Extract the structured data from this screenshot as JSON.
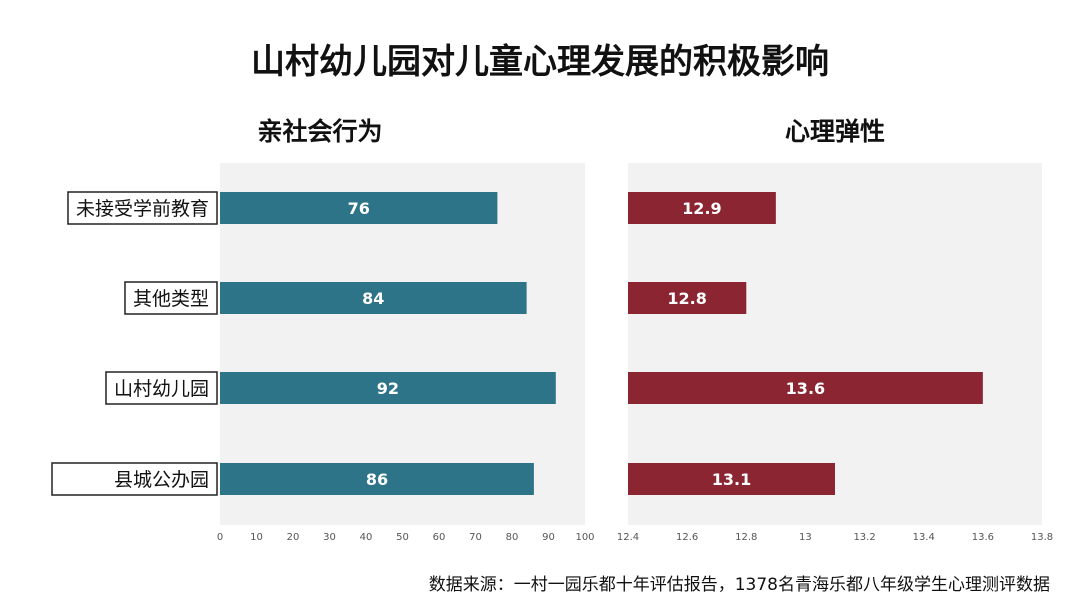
{
  "title": "山村幼儿园对儿童心理发展的积极影响",
  "source": "数据来源：一村一园乐都十年评估报告，1378名青海乐都八年级学生心理测评数据",
  "chart_data": [
    {
      "type": "bar",
      "orientation": "horizontal",
      "title": "亲社会行为",
      "categories": [
        "未接受学前教育",
        "其他类型",
        "山村幼儿园",
        "县城公办园"
      ],
      "values": [
        76,
        84,
        92,
        86
      ],
      "data_labels": [
        "76",
        "84",
        "92",
        "86"
      ],
      "xlim": [
        0,
        100
      ],
      "ticks": [
        "0",
        "10",
        "20",
        "30",
        "40",
        "50",
        "60",
        "70",
        "80",
        "90",
        "100"
      ],
      "color": "#2e7489",
      "background": "#f2f2f2",
      "grid": false
    },
    {
      "type": "bar",
      "orientation": "horizontal",
      "title": "心理弹性",
      "categories": [
        "未接受学前教育",
        "其他类型",
        "山村幼儿园",
        "县城公办园"
      ],
      "values": [
        12.9,
        12.8,
        13.6,
        13.1
      ],
      "data_labels": [
        "12.9",
        "12.8",
        "13.6",
        "13.1"
      ],
      "xlim": [
        12.4,
        13.8
      ],
      "ticks": [
        "12.4",
        "12.6",
        "12.8",
        "13",
        "13.2",
        "13.4",
        "13.6",
        "13.8"
      ],
      "color": "#8b2532",
      "background": "#f2f2f2",
      "grid": false
    }
  ]
}
